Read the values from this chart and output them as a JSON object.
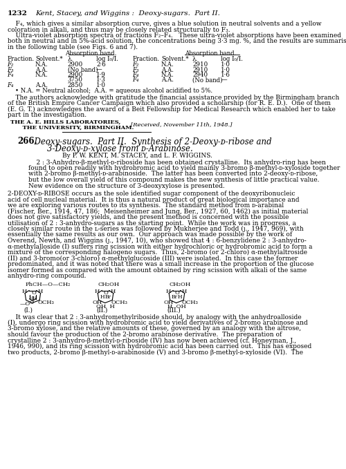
{
  "background_color": "#ffffff",
  "page_number": "1232",
  "header_title": "Kent, Stacey, and Wiggins :  Deoxy-sugars.  Part II.",
  "intro_text_1": "    F₄, which gives a similar absorption curve, gives a blue solution in neutral solvents and a yellow",
  "intro_text_2": "coloration in alkali, and thus may be closely related structurally to F₃.",
  "intro_text_3": "    Ultra-violet absorption spectra of fractions F₂–F₄.   These ultra-violet absorptions have been examined",
  "intro_text_4": "both in neutral and in 5%-acid solution, the concentrations being 3·3 mg. %, and the results are summarised",
  "intro_text_5": "in the following table (see Figs. 6 and 7).",
  "table_rows_left": [
    [
      "F₂",
      "N.A.",
      "2900",
      "2·6"
    ],
    [
      "F₃",
      "A.A.",
      "(No band)",
      "—"
    ],
    [
      "F₄",
      "N.A.",
      "2900",
      "1·9"
    ],
    [
      "",
      "",
      "3750",
      "1·3"
    ],
    [
      "F₄",
      "A.A.",
      "2850",
      "1·0"
    ]
  ],
  "table_rows_right": [
    [
      "F₂",
      "N.A.",
      "2910",
      "1·0"
    ],
    [
      "F₃",
      "A.A.",
      "2910",
      "1·0"
    ],
    [
      "F₄",
      "N.A.",
      "2940",
      "1·6"
    ],
    [
      "F₄",
      "A.A.",
      "(No band)",
      "—"
    ]
  ],
  "table_footnote": "    • N.A. = Neutral alcohol;  A.A. = aqueous alcohol acidified to 5%.",
  "ack_lines": [
    "    The authors acknowledge with gratitude the financial assistance provided by the Birmingham branch",
    "of the British Empire Cancer Campaign which also provided a scholarship (for R. E. D.).  One of them",
    "(E. G. T.) acknowledges the award of a Beit Fellowship for Medical Research which enabled her to take",
    "part in the investigation."
  ],
  "addr1": "THE A. E. HILLS LABORATORIES,",
  "addr2": "    THE UNIVERSITY, BIRMINGHAM.",
  "addr_right": "[Received, November 11th, 1948.]",
  "sec_num": "266.",
  "sec_title": "  Deoxy-sugars.  Part II.  Synthesis of 2-Deoxy-ᴅ-ribose and",
  "sec_title2": "3-Deoxy-ᴅ-xylose from ᴅ-Arabinose.",
  "authors_line": "By P. W. KENT, M. STACEY, and L. F. WIGGINS.",
  "abstract_lines": [
    "    2 : 3-Anhydro-β-methyl-ᴅ-riboside has been obtained crystalline.  Its anhydro-ring has been",
    "found to open readily with hydrobromic acid to yield mainly 3-bromo β-methyl-ᴅ-xyloside together",
    "with 2-bromo β-methyl-ᴅ-arabinoside.  The latter has been converted into 2-deoxy-ᴅ-ribose,",
    "but the low overall yield of this compound makes the new synthesis of little practical value.",
    "New evidence on the structure of 3-deoxyxylose is presented."
  ],
  "body_lines": [
    "2-DEOXY-ᴅ-RIBOSE occurs as the sole identified sugar component of the deoxyribonucleic",
    "acid of cell nucleal material.  It is thus a natural product of great biological importance and",
    "we are exploring various routes to its synthesis.  The standard method from ᴅ-arabinal",
    "(Fischer, Ber., 1914, 47, 186;  Meisenheimer and Jung, Ber., 1927, 60, 1462) as initial material",
    "does not give satisfactory yields, and the present method is concerned with the possible",
    "utilisation of 2 : 3-anhydro-sugars as the starting point.  While the work was in progress, a",
    "closely similar route in the ʟ-series was followed by Mukherjee and Todd (ȷ., 1947, 969), with",
    "essentially the same results as our own.  Our approach was made possible by the work of",
    "Overend, Newth, and Wiggins (ȷ., 1947, 10), who showed that 4 : 6-benzylidene 2 : 3-anhydro-",
    "α-methylalloside (I) suffers ring scission with either hydrochloric or hydrobromic acid to form a",
    "mixture of the corresponding halogeno sugars.  Thus, 2-bromo (or 2-chloro) α-methylaltroside",
    "(II) and 3-bromo(or 3-chloro) α-methylglucoside (III) were isolated.  In this case the former",
    "predominated, and it was noted that there was a small increase in the proportion of the glucose",
    "isomer formed as compared with the amount obtained by ring scission with alkali of the same",
    "anhydro-ring compound."
  ],
  "bottom_lines": [
    "    It was clear that 2 : 3-anhydromethylriboside should, by analogy with the anhydroalloside",
    "(I), undergo ring scission with hydrobromic acid to yield derivatives of 2-bromo arabinose and",
    "3-bromo xylose, and the relative amounts of these, governed by an analogy with the altrose,",
    "should favour the production of the 2-bromo arabinose derivative.  The preparation of",
    "crystalline 2 : 3-anhydro-β-methyl-ᴅ-riboside (IV) has now been achieved (cf. Honeyman, J.,",
    "1946, 990), and its ring scission with hydrobromic acid has been carried out.  This has exposed",
    "two products, 2-bromo β-methyl-ᴅ-arabinoside (V) and 3-bromo β-methyl-ᴅ-xyloside (VI).  The"
  ]
}
